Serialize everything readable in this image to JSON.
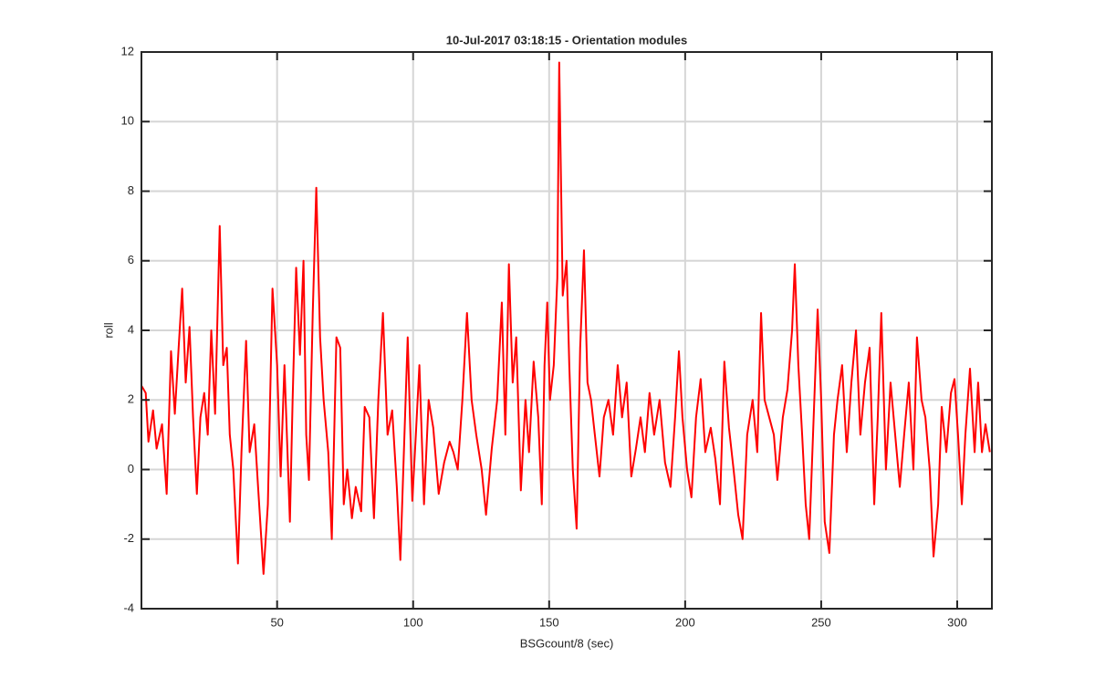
{
  "chart_data": {
    "type": "line",
    "title": "10-Jul-2017 03:18:15 - Orientation modules",
    "x_label": "BSGcount/8 (sec)",
    "y_label": "roll",
    "xlim": [
      0.125,
      312.75
    ],
    "ylim": [
      -4,
      12
    ],
    "xticks": [
      50,
      100,
      150,
      200,
      250,
      300
    ],
    "yticks": [
      -4,
      -2,
      0,
      2,
      4,
      6,
      8,
      10,
      12
    ],
    "grid": true,
    "x": [
      0.2,
      1.7,
      2.7,
      4.4,
      5.7,
      7.7,
      9.4,
      11,
      12.4,
      13.8,
      15.1,
      16.4,
      17.8,
      19.1,
      20.5,
      21.8,
      23.2,
      24.5,
      25.8,
      27.2,
      28.9,
      30.2,
      31.5,
      32.6,
      33.9,
      35.6,
      36.9,
      38.6,
      39.9,
      41.6,
      43,
      45,
      46.6,
      48.3,
      50,
      51.3,
      52.7,
      54.7,
      55.7,
      57,
      58.4,
      59.7,
      60.7,
      61.7,
      63.1,
      64.4,
      65.8,
      67.1,
      68.8,
      70.1,
      71.8,
      73.2,
      74.5,
      75.8,
      77.5,
      78.9,
      80.9,
      82.2,
      83.9,
      85.6,
      87.2,
      88.9,
      90.6,
      92.3,
      94,
      95.3,
      96.6,
      98,
      99.7,
      101,
      102.3,
      104,
      105.7,
      107.4,
      109.4,
      111.4,
      113.4,
      114.8,
      116.4,
      118.1,
      119.8,
      121.5,
      123.2,
      125.2,
      126.8,
      128.9,
      130.9,
      132.6,
      133.9,
      135.2,
      136.6,
      137.9,
      139.6,
      141.3,
      142.6,
      144.3,
      146,
      147.3,
      148.3,
      149.3,
      150.3,
      151.7,
      153,
      153.7,
      155,
      156.4,
      157.4,
      158.7,
      160.1,
      161.4,
      162.8,
      164.1,
      165.4,
      166.8,
      168.5,
      170.1,
      171.8,
      173.5,
      175.2,
      176.8,
      178.5,
      180.2,
      181.9,
      183.6,
      185.2,
      186.9,
      188.6,
      190.6,
      192.6,
      194.6,
      196.3,
      197.7,
      199,
      200.7,
      202.3,
      204,
      205.7,
      207.4,
      209.4,
      211.1,
      212.8,
      214.4,
      216.1,
      217.8,
      219.5,
      221.1,
      222.8,
      224.8,
      226.5,
      227.9,
      229.2,
      230.9,
      232.6,
      233.9,
      235.9,
      237.6,
      239.3,
      240.3,
      241.6,
      243,
      244.3,
      245.6,
      247,
      248.7,
      250,
      251.3,
      253,
      254.7,
      256,
      257.7,
      259.4,
      261.1,
      262.8,
      264.4,
      266.1,
      267.8,
      269.5,
      270.8,
      272.1,
      273.8,
      275.5,
      277.2,
      278.9,
      280.5,
      282.2,
      283.9,
      285.2,
      286.9,
      288.3,
      289.9,
      291.3,
      293,
      294.3,
      296,
      297.7,
      299,
      300.3,
      301.7,
      303,
      304.7,
      306.4,
      307.7,
      309.1,
      310.4,
      312
    ],
    "series": [
      {
        "name": "roll",
        "color": "#ff0000",
        "values": [
          2.4,
          2.2,
          0.8,
          1.7,
          0.6,
          1.3,
          -0.7,
          3.4,
          1.6,
          3.5,
          5.2,
          2.5,
          4.1,
          1.5,
          -0.7,
          1.5,
          2.2,
          1.0,
          4.0,
          1.6,
          7.0,
          3.0,
          3.5,
          1.0,
          0.0,
          -2.7,
          0.5,
          3.7,
          0.5,
          1.3,
          -0.5,
          -3.0,
          -1.0,
          5.2,
          3.0,
          -0.2,
          3.0,
          -1.5,
          2.0,
          5.8,
          3.3,
          6.0,
          1.0,
          -0.3,
          4.5,
          8.1,
          3.8,
          2.0,
          0.5,
          -2.0,
          3.8,
          3.5,
          -1.0,
          0.0,
          -1.4,
          -0.5,
          -1.2,
          1.8,
          1.5,
          -1.4,
          2.0,
          4.5,
          1.0,
          1.7,
          -0.5,
          -2.6,
          0.5,
          3.8,
          -0.9,
          1.0,
          3.0,
          -1.0,
          2.0,
          1.2,
          -0.7,
          0.2,
          0.8,
          0.5,
          0.0,
          2.0,
          4.5,
          2.0,
          1.0,
          0.0,
          -1.3,
          0.6,
          2.0,
          4.8,
          1.0,
          5.9,
          2.5,
          3.8,
          -0.6,
          2.0,
          0.5,
          3.1,
          1.5,
          -1.0,
          3.0,
          4.8,
          2.0,
          3.0,
          5.5,
          11.7,
          5.0,
          6.0,
          3.0,
          0.0,
          -1.7,
          3.5,
          6.3,
          2.5,
          2.0,
          1.0,
          -0.2,
          1.5,
          2.0,
          1.0,
          3.0,
          1.5,
          2.5,
          -0.2,
          0.6,
          1.5,
          0.5,
          2.2,
          1.0,
          2.0,
          0.2,
          -0.5,
          1.5,
          3.4,
          1.5,
          0.0,
          -0.8,
          1.5,
          2.6,
          0.5,
          1.2,
          0.3,
          -1.0,
          3.1,
          1.2,
          0.0,
          -1.3,
          -2.0,
          1.0,
          2.0,
          0.5,
          4.5,
          2.0,
          1.5,
          1.0,
          -0.3,
          1.5,
          2.3,
          4.0,
          5.9,
          3.0,
          1.0,
          -1.0,
          -2.0,
          1.0,
          4.6,
          2.0,
          -1.5,
          -2.4,
          1.0,
          2.0,
          3.0,
          0.5,
          2.5,
          4.0,
          1.0,
          2.5,
          3.5,
          -1.0,
          1.5,
          4.5,
          0.0,
          2.5,
          1.0,
          -0.5,
          1.0,
          2.5,
          0.0,
          3.8,
          2.0,
          1.5,
          0.0,
          -2.5,
          -1.0,
          1.8,
          0.5,
          2.2,
          2.6,
          1.0,
          -1.0,
          1.0,
          2.9,
          0.5,
          2.5,
          0.5,
          1.3,
          0.5
        ]
      }
    ]
  }
}
